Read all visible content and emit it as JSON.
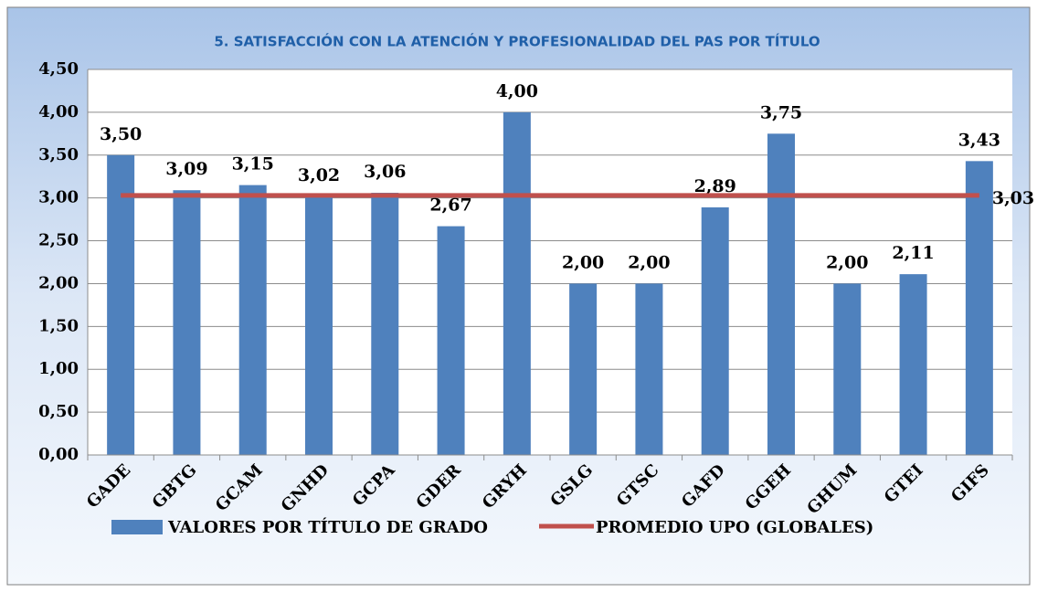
{
  "chart_data": {
    "type": "bar",
    "title": "5. SATISFACCIÓN CON LA ATENCIÓN Y PROFESIONALIDAD DEL PAS POR TÍTULO",
    "categories": [
      "GADE",
      "GBTG",
      "GCAM",
      "GNHD",
      "GCPA",
      "GDER",
      "GRYH",
      "GSLG",
      "GTSC",
      "GAFD",
      "GGEH",
      "GHUM",
      "GTEI",
      "GIFS"
    ],
    "series": [
      {
        "name": "VALORES POR TÍTULO DE GRADO",
        "type": "bar",
        "color": "#4f81bd",
        "values": [
          3.5,
          3.09,
          3.15,
          3.02,
          3.06,
          2.67,
          4.0,
          2.0,
          2.0,
          2.89,
          3.75,
          2.0,
          2.11,
          3.43
        ],
        "value_labels": [
          "3,50",
          "3,09",
          "3,15",
          "3,02",
          "3,06",
          "2,67",
          "4,00",
          "2,00",
          "2,00",
          "2,89",
          "3,75",
          "2,00",
          "2,11",
          "3,43"
        ]
      },
      {
        "name": "PROMEDIO UPO (GLOBALES)",
        "type": "line",
        "color": "#c0504d",
        "values": [
          3.03,
          3.03,
          3.03,
          3.03,
          3.03,
          3.03,
          3.03,
          3.03,
          3.03,
          3.03,
          3.03,
          3.03,
          3.03,
          3.03
        ],
        "value_labels": [
          null,
          null,
          null,
          null,
          null,
          null,
          null,
          null,
          null,
          null,
          null,
          null,
          null,
          "3,03"
        ]
      }
    ],
    "ylim": [
      0,
      4.5
    ],
    "yticks": [
      {
        "value": 0,
        "label": "0,00"
      },
      {
        "value": 0.5,
        "label": "0,50"
      },
      {
        "value": 1,
        "label": "1,00"
      },
      {
        "value": 1.5,
        "label": "1,50"
      },
      {
        "value": 2,
        "label": "2,00"
      },
      {
        "value": 2.5,
        "label": "2,50"
      },
      {
        "value": 3,
        "label": "3,00"
      },
      {
        "value": 3.5,
        "label": "3,50"
      },
      {
        "value": 4,
        "label": "4,00"
      },
      {
        "value": 4.5,
        "label": "4,50"
      }
    ],
    "grid": true,
    "legend": "bottom"
  }
}
